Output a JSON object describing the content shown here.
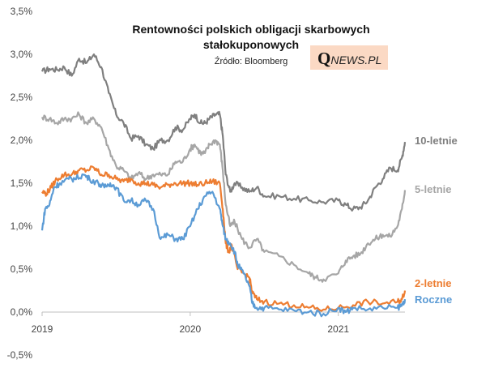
{
  "chart_data": {
    "type": "line",
    "title_line1": "Rentowności polskich obligacji skarbowych",
    "title_line2": "stałokuponowych",
    "source": "Źródło: Bloomberg",
    "logo": {
      "q": "Q",
      "rest": "NEWS.PL",
      "bg": "#fbd9c4"
    },
    "ylim": [
      -0.5,
      3.5
    ],
    "yticks": [
      "3,5%",
      "3,0%",
      "2,5%",
      "2,0%",
      "1,5%",
      "1,0%",
      "0,5%",
      "0,0%",
      "-0,5%"
    ],
    "xlabels": [
      {
        "label": "2019",
        "x": 2019.0
      },
      {
        "label": "2020",
        "x": 2020.0
      },
      {
        "label": "2021",
        "x": 2021.0
      }
    ],
    "xlim": [
      2019.0,
      2021.45
    ],
    "grid": false,
    "series": [
      {
        "name": "10-letnie",
        "color": "#7f7f7f",
        "points": [
          [
            2019.0,
            2.8
          ],
          [
            2019.05,
            2.83
          ],
          [
            2019.1,
            2.82
          ],
          [
            2019.15,
            2.85
          ],
          [
            2019.2,
            2.75
          ],
          [
            2019.25,
            2.95
          ],
          [
            2019.3,
            2.9
          ],
          [
            2019.35,
            3.0
          ],
          [
            2019.4,
            2.85
          ],
          [
            2019.45,
            2.55
          ],
          [
            2019.5,
            2.3
          ],
          [
            2019.55,
            2.2
          ],
          [
            2019.6,
            2.02
          ],
          [
            2019.65,
            2.05
          ],
          [
            2019.7,
            1.95
          ],
          [
            2019.75,
            1.9
          ],
          [
            2019.8,
            2.0
          ],
          [
            2019.85,
            2.0
          ],
          [
            2019.9,
            2.15
          ],
          [
            2019.95,
            2.12
          ],
          [
            2020.0,
            2.25
          ],
          [
            2020.03,
            2.3
          ],
          [
            2020.07,
            2.2
          ],
          [
            2020.1,
            2.2
          ],
          [
            2020.13,
            2.25
          ],
          [
            2020.17,
            2.3
          ],
          [
            2020.2,
            2.3
          ],
          [
            2020.22,
            2.05
          ],
          [
            2020.24,
            1.6
          ],
          [
            2020.27,
            1.4
          ],
          [
            2020.3,
            1.5
          ],
          [
            2020.35,
            1.45
          ],
          [
            2020.4,
            1.4
          ],
          [
            2020.45,
            1.45
          ],
          [
            2020.5,
            1.35
          ],
          [
            2020.6,
            1.35
          ],
          [
            2020.7,
            1.32
          ],
          [
            2020.8,
            1.3
          ],
          [
            2020.9,
            1.28
          ],
          [
            2021.0,
            1.3
          ],
          [
            2021.05,
            1.25
          ],
          [
            2021.1,
            1.2
          ],
          [
            2021.15,
            1.22
          ],
          [
            2021.2,
            1.3
          ],
          [
            2021.25,
            1.45
          ],
          [
            2021.3,
            1.55
          ],
          [
            2021.35,
            1.68
          ],
          [
            2021.4,
            1.65
          ],
          [
            2021.43,
            1.8
          ],
          [
            2021.45,
            1.98
          ]
        ]
      },
      {
        "name": "5-letnie",
        "color": "#a6a6a6",
        "points": [
          [
            2019.0,
            2.27
          ],
          [
            2019.05,
            2.25
          ],
          [
            2019.1,
            2.2
          ],
          [
            2019.15,
            2.25
          ],
          [
            2019.2,
            2.25
          ],
          [
            2019.25,
            2.3
          ],
          [
            2019.3,
            2.2
          ],
          [
            2019.35,
            2.25
          ],
          [
            2019.4,
            2.15
          ],
          [
            2019.45,
            1.9
          ],
          [
            2019.5,
            1.7
          ],
          [
            2019.55,
            1.65
          ],
          [
            2019.6,
            1.55
          ],
          [
            2019.65,
            1.62
          ],
          [
            2019.7,
            1.55
          ],
          [
            2019.75,
            1.6
          ],
          [
            2019.8,
            1.6
          ],
          [
            2019.85,
            1.6
          ],
          [
            2019.9,
            1.75
          ],
          [
            2019.95,
            1.75
          ],
          [
            2020.0,
            1.9
          ],
          [
            2020.03,
            1.95
          ],
          [
            2020.07,
            1.85
          ],
          [
            2020.1,
            1.85
          ],
          [
            2020.13,
            1.95
          ],
          [
            2020.17,
            2.0
          ],
          [
            2020.2,
            1.95
          ],
          [
            2020.22,
            1.65
          ],
          [
            2020.24,
            1.25
          ],
          [
            2020.27,
            1.0
          ],
          [
            2020.3,
            1.05
          ],
          [
            2020.35,
            0.85
          ],
          [
            2020.4,
            0.75
          ],
          [
            2020.45,
            0.85
          ],
          [
            2020.5,
            0.7
          ],
          [
            2020.6,
            0.65
          ],
          [
            2020.7,
            0.55
          ],
          [
            2020.8,
            0.45
          ],
          [
            2020.85,
            0.4
          ],
          [
            2020.9,
            0.38
          ],
          [
            2021.0,
            0.45
          ],
          [
            2021.05,
            0.6
          ],
          [
            2021.1,
            0.65
          ],
          [
            2021.15,
            0.68
          ],
          [
            2021.2,
            0.8
          ],
          [
            2021.25,
            0.85
          ],
          [
            2021.3,
            0.9
          ],
          [
            2021.35,
            0.88
          ],
          [
            2021.4,
            1.0
          ],
          [
            2021.43,
            1.2
          ],
          [
            2021.45,
            1.42
          ]
        ]
      },
      {
        "name": "2-letnie",
        "color": "#ed7d31",
        "points": [
          [
            2019.0,
            1.4
          ],
          [
            2019.03,
            1.38
          ],
          [
            2019.06,
            1.45
          ],
          [
            2019.1,
            1.55
          ],
          [
            2019.15,
            1.6
          ],
          [
            2019.2,
            1.6
          ],
          [
            2019.25,
            1.65
          ],
          [
            2019.3,
            1.65
          ],
          [
            2019.35,
            1.68
          ],
          [
            2019.4,
            1.6
          ],
          [
            2019.45,
            1.6
          ],
          [
            2019.5,
            1.55
          ],
          [
            2019.55,
            1.52
          ],
          [
            2019.6,
            1.55
          ],
          [
            2019.65,
            1.5
          ],
          [
            2019.7,
            1.5
          ],
          [
            2019.75,
            1.48
          ],
          [
            2019.8,
            1.45
          ],
          [
            2019.85,
            1.48
          ],
          [
            2019.9,
            1.5
          ],
          [
            2019.95,
            1.5
          ],
          [
            2020.0,
            1.5
          ],
          [
            2020.05,
            1.48
          ],
          [
            2020.1,
            1.5
          ],
          [
            2020.15,
            1.52
          ],
          [
            2020.2,
            1.5
          ],
          [
            2020.22,
            1.2
          ],
          [
            2020.24,
            0.8
          ],
          [
            2020.26,
            0.7
          ],
          [
            2020.28,
            0.78
          ],
          [
            2020.32,
            0.5
          ],
          [
            2020.36,
            0.45
          ],
          [
            2020.4,
            0.4
          ],
          [
            2020.42,
            0.22
          ],
          [
            2020.45,
            0.15
          ],
          [
            2020.5,
            0.12
          ],
          [
            2020.6,
            0.1
          ],
          [
            2020.7,
            0.08
          ],
          [
            2020.8,
            0.05
          ],
          [
            2020.9,
            0.03
          ],
          [
            2021.0,
            0.05
          ],
          [
            2021.1,
            0.08
          ],
          [
            2021.2,
            0.12
          ],
          [
            2021.3,
            0.1
          ],
          [
            2021.4,
            0.12
          ],
          [
            2021.43,
            0.15
          ],
          [
            2021.45,
            0.25
          ]
        ]
      },
      {
        "name": "Roczne",
        "color": "#5b9bd5",
        "points": [
          [
            2019.0,
            0.95
          ],
          [
            2019.02,
            1.2
          ],
          [
            2019.05,
            1.25
          ],
          [
            2019.08,
            1.45
          ],
          [
            2019.12,
            1.5
          ],
          [
            2019.18,
            1.55
          ],
          [
            2019.22,
            1.55
          ],
          [
            2019.28,
            1.6
          ],
          [
            2019.32,
            1.55
          ],
          [
            2019.38,
            1.5
          ],
          [
            2019.42,
            1.45
          ],
          [
            2019.46,
            1.5
          ],
          [
            2019.5,
            1.45
          ],
          [
            2019.55,
            1.3
          ],
          [
            2019.6,
            1.3
          ],
          [
            2019.65,
            1.25
          ],
          [
            2019.7,
            1.3
          ],
          [
            2019.75,
            1.2
          ],
          [
            2019.8,
            0.85
          ],
          [
            2019.85,
            0.9
          ],
          [
            2019.9,
            0.85
          ],
          [
            2019.95,
            0.85
          ],
          [
            2020.0,
            1.0
          ],
          [
            2020.05,
            1.2
          ],
          [
            2020.1,
            1.35
          ],
          [
            2020.15,
            1.4
          ],
          [
            2020.2,
            1.2
          ],
          [
            2020.22,
            1.0
          ],
          [
            2020.24,
            0.85
          ],
          [
            2020.27,
            0.8
          ],
          [
            2020.3,
            0.7
          ],
          [
            2020.32,
            0.55
          ],
          [
            2020.36,
            0.45
          ],
          [
            2020.4,
            0.3
          ],
          [
            2020.42,
            0.1
          ],
          [
            2020.45,
            0.05
          ],
          [
            2020.5,
            0.05
          ],
          [
            2020.6,
            0.03
          ],
          [
            2020.7,
            0.02
          ],
          [
            2020.8,
            0.0
          ],
          [
            2020.9,
            -0.02
          ],
          [
            2021.0,
            0.05
          ],
          [
            2021.05,
            0.0
          ],
          [
            2021.1,
            0.05
          ],
          [
            2021.2,
            0.03
          ],
          [
            2021.3,
            0.05
          ],
          [
            2021.4,
            0.05
          ],
          [
            2021.43,
            0.08
          ],
          [
            2021.45,
            0.15
          ]
        ]
      }
    ]
  }
}
